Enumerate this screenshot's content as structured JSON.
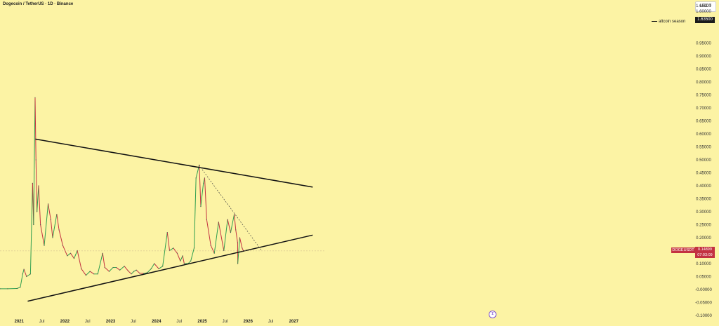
{
  "header": {
    "title": "Dogecoin / TetherUS · 1D · Binance",
    "currency_button": "USDT"
  },
  "indicator": {
    "legend_label": "altcoin season",
    "legend_value": "1.63500"
  },
  "price_marker": {
    "symbol": "DOGEUSDT",
    "price": "0.14899",
    "countdown": "07:03:09"
  },
  "tv_logo_glyph": "𝕿",
  "colors": {
    "background": "#fcf3a4",
    "up": "#2e9e4f",
    "down": "#c33141",
    "trendline": "#111111"
  },
  "chart_data": {
    "type": "line",
    "title": "Dogecoin / TetherUS · 1D · Binance",
    "y_scale": "linear",
    "ylim": [
      -0.1,
      1.7
    ],
    "y_ticks": [
      "1.65000",
      "1.60000",
      "0.95000",
      "0.90000",
      "0.85000",
      "0.80000",
      "0.75000",
      "0.70000",
      "0.65000",
      "0.60000",
      "0.55000",
      "0.50000",
      "0.45000",
      "0.40000",
      "0.35000",
      "0.30000",
      "0.25000",
      "0.20000",
      "0.15000",
      "0.10000",
      "0.05000",
      "-0.00000",
      "-0.05000",
      "-0.10000"
    ],
    "x_ticks": [
      {
        "label": "2021",
        "date": "2021-01-01",
        "major": true
      },
      {
        "label": "Jul",
        "date": "2021-07-01",
        "major": false
      },
      {
        "label": "2022",
        "date": "2022-01-01",
        "major": true
      },
      {
        "label": "Jul",
        "date": "2022-07-01",
        "major": false
      },
      {
        "label": "2023",
        "date": "2023-01-01",
        "major": true
      },
      {
        "label": "Jul",
        "date": "2023-07-01",
        "major": false
      },
      {
        "label": "2024",
        "date": "2024-01-01",
        "major": true
      },
      {
        "label": "Jul",
        "date": "2024-07-01",
        "major": false
      },
      {
        "label": "2025",
        "date": "2025-01-01",
        "major": true
      },
      {
        "label": "Jul",
        "date": "2025-07-01",
        "major": false
      },
      {
        "label": "2026",
        "date": "2026-01-01",
        "major": true
      },
      {
        "label": "Jul",
        "date": "2026-07-01",
        "major": false
      },
      {
        "label": "2027",
        "date": "2027-01-01",
        "major": true
      }
    ],
    "series": [
      {
        "name": "DOGEUSDT",
        "points": [
          [
            "2020-08-01",
            0.003
          ],
          [
            "2020-10-01",
            0.003
          ],
          [
            "2020-12-15",
            0.004
          ],
          [
            "2021-01-10",
            0.009
          ],
          [
            "2021-01-29",
            0.06
          ],
          [
            "2021-02-08",
            0.078
          ],
          [
            "2021-03-01",
            0.05
          ],
          [
            "2021-04-01",
            0.06
          ],
          [
            "2021-04-18",
            0.41
          ],
          [
            "2021-04-26",
            0.25
          ],
          [
            "2021-05-08",
            0.74
          ],
          [
            "2021-05-15",
            0.5
          ],
          [
            "2021-05-23",
            0.3
          ],
          [
            "2021-06-05",
            0.4
          ],
          [
            "2021-06-20",
            0.25
          ],
          [
            "2021-07-20",
            0.17
          ],
          [
            "2021-08-20",
            0.33
          ],
          [
            "2021-09-10",
            0.27
          ],
          [
            "2021-09-25",
            0.2
          ],
          [
            "2021-10-28",
            0.29
          ],
          [
            "2021-11-15",
            0.23
          ],
          [
            "2021-12-15",
            0.17
          ],
          [
            "2022-01-20",
            0.13
          ],
          [
            "2022-02-15",
            0.14
          ],
          [
            "2022-03-15",
            0.12
          ],
          [
            "2022-04-10",
            0.15
          ],
          [
            "2022-05-12",
            0.08
          ],
          [
            "2022-06-18",
            0.055
          ],
          [
            "2022-07-20",
            0.07
          ],
          [
            "2022-08-20",
            0.06
          ],
          [
            "2022-09-20",
            0.06
          ],
          [
            "2022-10-29",
            0.14
          ],
          [
            "2022-11-15",
            0.085
          ],
          [
            "2022-12-20",
            0.07
          ],
          [
            "2023-01-20",
            0.085
          ],
          [
            "2023-02-15",
            0.085
          ],
          [
            "2023-03-15",
            0.075
          ],
          [
            "2023-04-20",
            0.09
          ],
          [
            "2023-05-20",
            0.072
          ],
          [
            "2023-06-15",
            0.06
          ],
          [
            "2023-07-05",
            0.07
          ],
          [
            "2023-07-25",
            0.075
          ],
          [
            "2023-08-20",
            0.063
          ],
          [
            "2023-09-20",
            0.062
          ],
          [
            "2023-10-20",
            0.065
          ],
          [
            "2023-11-20",
            0.08
          ],
          [
            "2023-12-15",
            0.1
          ],
          [
            "2024-01-20",
            0.08
          ],
          [
            "2024-02-20",
            0.09
          ],
          [
            "2024-03-28",
            0.22
          ],
          [
            "2024-04-15",
            0.15
          ],
          [
            "2024-05-15",
            0.16
          ],
          [
            "2024-06-15",
            0.14
          ],
          [
            "2024-07-10",
            0.11
          ],
          [
            "2024-07-28",
            0.13
          ],
          [
            "2024-08-10",
            0.1
          ],
          [
            "2024-09-10",
            0.1
          ],
          [
            "2024-10-01",
            0.11
          ],
          [
            "2024-10-28",
            0.16
          ],
          [
            "2024-11-12",
            0.43
          ],
          [
            "2024-12-08",
            0.48
          ],
          [
            "2024-12-20",
            0.32
          ],
          [
            "2025-01-10",
            0.41
          ],
          [
            "2025-01-20",
            0.43
          ],
          [
            "2025-02-05",
            0.27
          ],
          [
            "2025-03-10",
            0.17
          ],
          [
            "2025-04-07",
            0.14
          ],
          [
            "2025-05-11",
            0.26
          ],
          [
            "2025-06-22",
            0.15
          ],
          [
            "2025-07-22",
            0.27
          ],
          [
            "2025-08-15",
            0.22
          ],
          [
            "2025-09-13",
            0.29
          ],
          [
            "2025-09-25",
            0.23
          ],
          [
            "2025-10-10",
            0.18
          ],
          [
            "2025-10-11",
            0.1
          ],
          [
            "2025-10-27",
            0.2
          ],
          [
            "2025-11-15",
            0.16
          ],
          [
            "2025-11-25",
            0.149
          ]
        ]
      }
    ],
    "annotations": [
      {
        "name": "upper-trendline",
        "points": [
          [
            "2021-05-10",
            0.58
          ],
          [
            "2027-06-01",
            0.395
          ]
        ]
      },
      {
        "name": "lower-trendline",
        "points": [
          [
            "2021-03-10",
            -0.045
          ],
          [
            "2027-06-01",
            0.21
          ]
        ]
      },
      {
        "name": "dashed-trendline",
        "points": [
          [
            "2024-12-05",
            0.48
          ],
          [
            "2026-04-20",
            0.15
          ]
        ]
      },
      {
        "name": "price-line",
        "points": [
          [
            "2020-08-01",
            0.149
          ],
          [
            "2027-09-01",
            0.149
          ]
        ]
      }
    ]
  }
}
